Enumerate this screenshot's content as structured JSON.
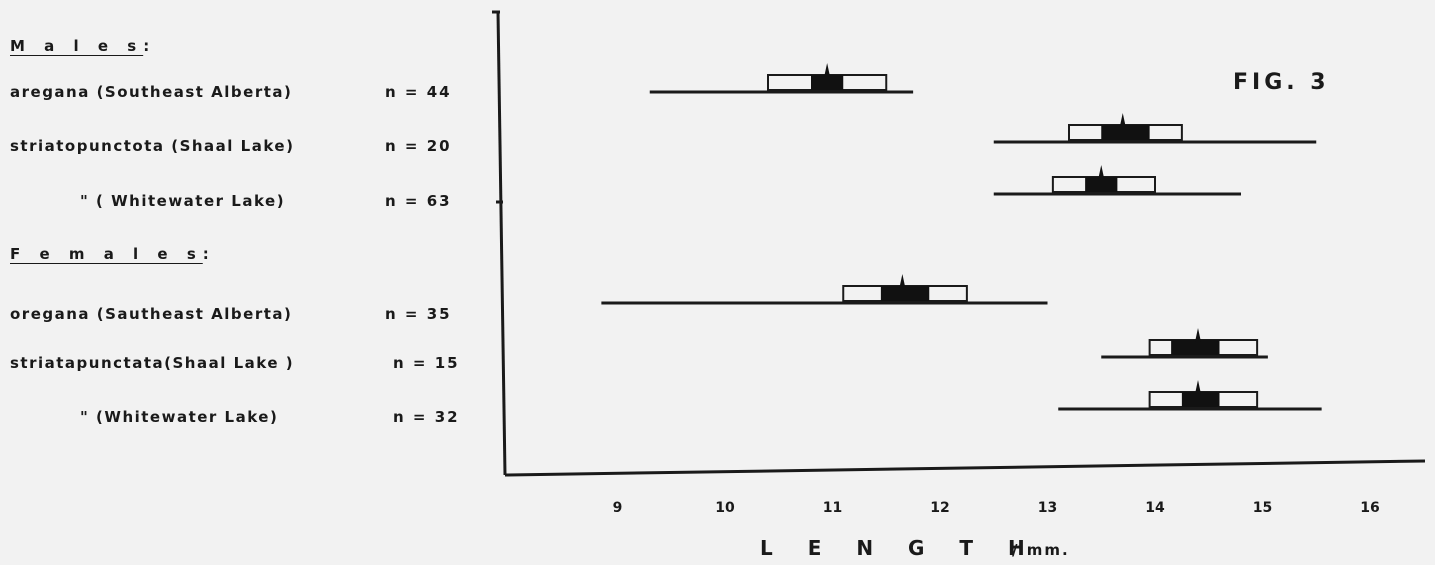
{
  "chart_data": {
    "type": "range-box",
    "title": "FIG. 3",
    "xlabel": "L E N G T H",
    "xunit": "/ mm.",
    "xlim": [
      8.2,
      16.5
    ],
    "xticks": [
      9,
      10,
      11,
      12,
      13,
      14,
      15,
      16
    ],
    "xtick_labels": [
      "9",
      "10",
      "11",
      "12",
      "13",
      "14",
      "15",
      "16"
    ],
    "groups": [
      {
        "name": "M a l e s",
        "suffix": ":"
      },
      {
        "name": "F e m a l e s",
        "suffix": ":"
      }
    ],
    "series": [
      {
        "group": 0,
        "label": "aregana (Southeast Alberta)",
        "n": "n = 44",
        "min": 9.3,
        "max": 11.75,
        "box_lo": 10.4,
        "box_hi": 11.5,
        "dark_lo": 10.8,
        "dark_hi": 11.1,
        "mean": 10.95
      },
      {
        "group": 0,
        "label": "striatopunctota (Shaal Lake)",
        "n": "n = 20",
        "min": 12.5,
        "max": 15.5,
        "box_lo": 13.2,
        "box_hi": 14.25,
        "dark_lo": 13.5,
        "dark_hi": 13.95,
        "mean": 13.7
      },
      {
        "group": 0,
        "label": "\"   ( Whitewater Lake)",
        "n": "n = 63",
        "min": 12.5,
        "max": 14.8,
        "box_lo": 13.05,
        "box_hi": 14.0,
        "dark_lo": 13.35,
        "dark_hi": 13.65,
        "mean": 13.5
      },
      {
        "group": 1,
        "label": "oregana (Sautheast  Alberta)",
        "n": "n = 35",
        "min": 8.85,
        "max": 13.0,
        "box_lo": 11.1,
        "box_hi": 12.25,
        "dark_lo": 11.45,
        "dark_hi": 11.9,
        "mean": 11.65
      },
      {
        "group": 1,
        "label": "striatapunctata(Shaal Lake )",
        "n": "n = 15",
        "min": 13.5,
        "max": 15.05,
        "box_lo": 13.95,
        "box_hi": 14.95,
        "dark_lo": 14.15,
        "dark_hi": 14.6,
        "mean": 14.4
      },
      {
        "group": 1,
        "label": "\"   (Whitewater  Lake)",
        "n": "n = 32",
        "min": 13.1,
        "max": 15.55,
        "box_lo": 13.95,
        "box_hi": 14.95,
        "dark_lo": 14.25,
        "dark_hi": 14.6,
        "mean": 14.4
      }
    ]
  }
}
